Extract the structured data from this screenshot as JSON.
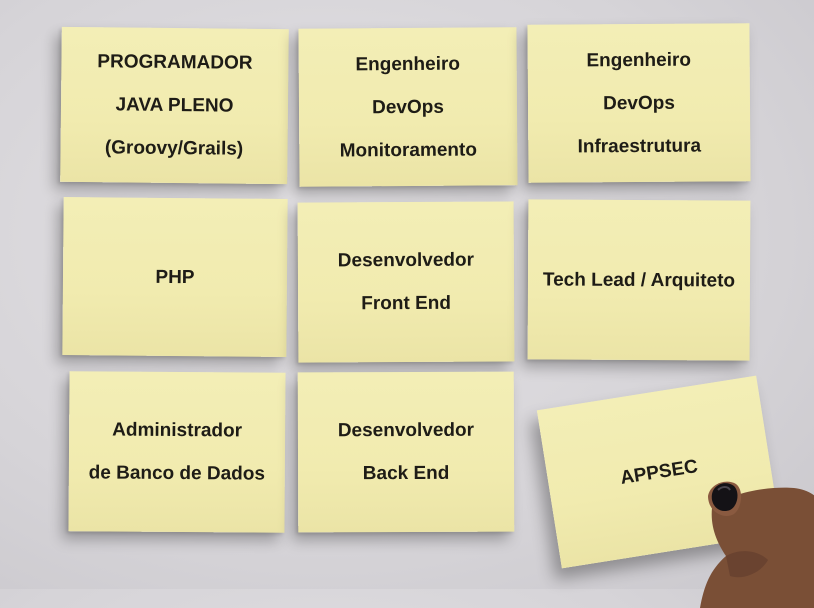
{
  "notes": [
    {
      "lines": [
        "PROGRAMADOR",
        "JAVA PLENO",
        "(Groovy/Grails)"
      ]
    },
    {
      "lines": [
        "Engenheiro",
        "DevOps",
        "Monitoramento"
      ]
    },
    {
      "lines": [
        "Engenheiro",
        "DevOps",
        "Infraestrutura"
      ]
    },
    {
      "lines": [
        "PHP"
      ]
    },
    {
      "lines": [
        "Desenvolvedor",
        "Front End"
      ]
    },
    {
      "lines": [
        "Tech Lead / Arquiteto"
      ]
    },
    {
      "lines": [
        "Administrador",
        "de Banco de Dados"
      ]
    },
    {
      "lines": [
        "Desenvolvedor",
        "Back End"
      ]
    },
    {
      "lines": [
        "APPSEC"
      ]
    }
  ],
  "colors": {
    "wall": "#d8d6da",
    "note": "#f2edb2",
    "text": "#1e1c16",
    "nail_polish": "#141216",
    "skin": "#7a4f36"
  }
}
